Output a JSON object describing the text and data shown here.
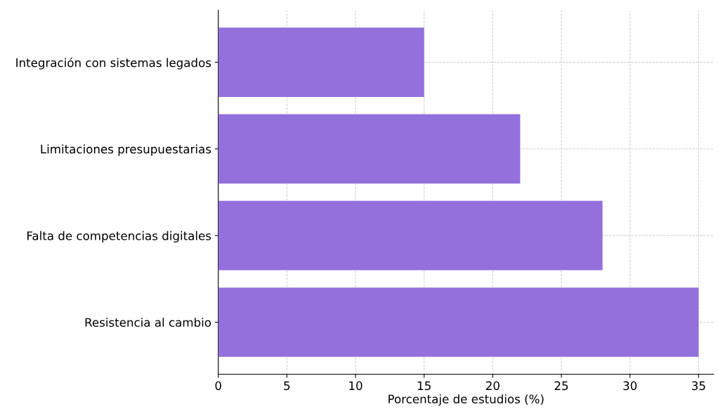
{
  "chart_data": {
    "type": "bar",
    "orientation": "horizontal",
    "xlabel": "Porcentaje de estudios (%)",
    "categories": [
      "Integración con sistemas legados",
      "Limitaciones presupuestarias",
      "Falta de competencias digitales",
      "Resistencia al cambio"
    ],
    "values": [
      15,
      22,
      28,
      35
    ],
    "color": "#9370db",
    "xlim": [
      0,
      36.1
    ],
    "xticks": [
      0,
      5,
      10,
      15,
      20,
      25,
      30,
      35
    ],
    "grid": true
  }
}
